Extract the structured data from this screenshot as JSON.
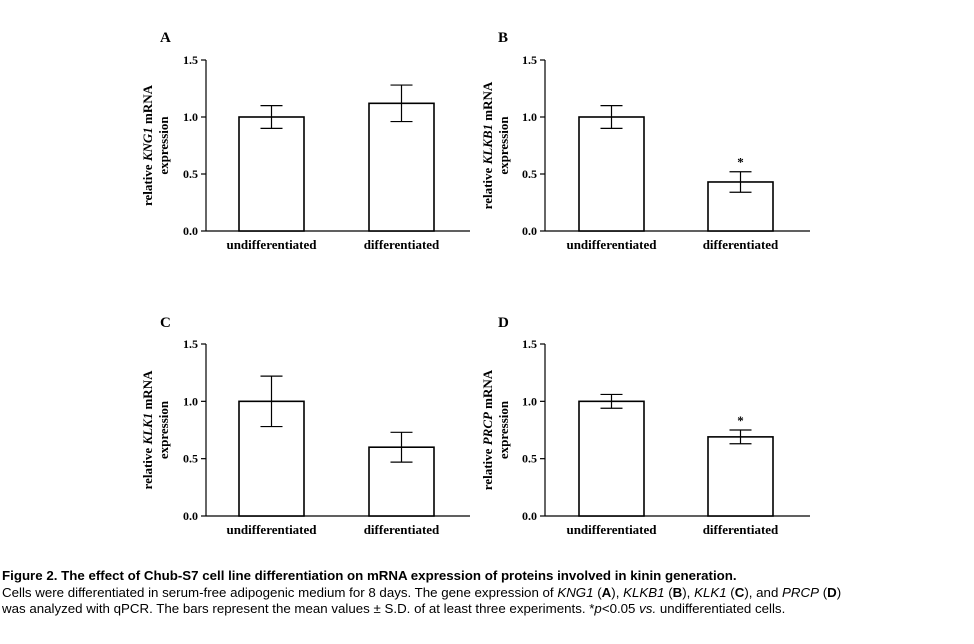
{
  "chart_data": [
    {
      "panel": "A",
      "type": "bar",
      "categories": [
        "undifferentiated",
        "differentiated"
      ],
      "values": [
        1.0,
        1.12
      ],
      "errors": [
        0.1,
        0.16
      ],
      "significance": [
        "",
        ""
      ],
      "ylabel_parts": [
        "relative ",
        "KNG1",
        " mRNA"
      ],
      "ylabel_line2": "expression",
      "ylim": [
        0,
        1.5
      ],
      "yticks": [
        "0.0",
        "0.5",
        "1.0",
        "1.5"
      ]
    },
    {
      "panel": "B",
      "type": "bar",
      "categories": [
        "undifferentiated",
        "differentiated"
      ],
      "values": [
        1.0,
        0.43
      ],
      "errors": [
        0.1,
        0.09
      ],
      "significance": [
        "",
        "*"
      ],
      "ylabel_parts": [
        "relative ",
        "KLKB1",
        " mRNA"
      ],
      "ylabel_line2": "expression",
      "ylim": [
        0,
        1.5
      ],
      "yticks": [
        "0.0",
        "0.5",
        "1.0",
        "1.5"
      ]
    },
    {
      "panel": "C",
      "type": "bar",
      "categories": [
        "undifferentiated",
        "differentiated"
      ],
      "values": [
        1.0,
        0.6
      ],
      "errors": [
        0.22,
        0.13
      ],
      "significance": [
        "",
        ""
      ],
      "ylabel_parts": [
        "relative ",
        "KLK1",
        " mRNA"
      ],
      "ylabel_line2": "expression",
      "ylim": [
        0,
        1.5
      ],
      "yticks": [
        "0.0",
        "0.5",
        "1.0",
        "1.5"
      ]
    },
    {
      "panel": "D",
      "type": "bar",
      "categories": [
        "undifferentiated",
        "differentiated"
      ],
      "values": [
        1.0,
        0.69
      ],
      "errors": [
        0.06,
        0.06
      ],
      "significance": [
        "",
        "*"
      ],
      "ylabel_parts": [
        "relative ",
        "PRCP",
        " mRNA"
      ],
      "ylabel_line2": "expression",
      "ylim": [
        0,
        1.5
      ],
      "yticks": [
        "0.0",
        "0.5",
        "1.0",
        "1.5"
      ]
    }
  ],
  "caption": {
    "title": "Figure 2. The effect of Chub-S7 cell line differentiation on mRNA expression of proteins involved in kinin generation.",
    "line1": [
      {
        "t": "Cells were differentiated in serum-free adipogenic medium for 8 days. The gene expression of ",
        "s": ""
      },
      {
        "t": "KNG1",
        "s": "i"
      },
      {
        "t": " (",
        "s": ""
      },
      {
        "t": "A",
        "s": "b"
      },
      {
        "t": "), ",
        "s": ""
      },
      {
        "t": "KLKB1",
        "s": "i"
      },
      {
        "t": " (",
        "s": ""
      },
      {
        "t": "B",
        "s": "b"
      },
      {
        "t": "), ",
        "s": ""
      },
      {
        "t": "KLK1",
        "s": "i"
      },
      {
        "t": " (",
        "s": ""
      },
      {
        "t": "C",
        "s": "b"
      },
      {
        "t": "), and ",
        "s": ""
      },
      {
        "t": "PRCP",
        "s": "i"
      },
      {
        "t": " (",
        "s": ""
      },
      {
        "t": "D",
        "s": "b"
      },
      {
        "t": ")",
        "s": ""
      }
    ],
    "line2": [
      {
        "t": "was analyzed with qPCR. The bars represent the mean values ± S.D. of at least three experiments. *",
        "s": ""
      },
      {
        "t": "p",
        "s": "i"
      },
      {
        "t": "<0.05 ",
        "s": ""
      },
      {
        "t": "vs.",
        "s": "i"
      },
      {
        "t": " undifferentiated cells.",
        "s": ""
      }
    ]
  }
}
